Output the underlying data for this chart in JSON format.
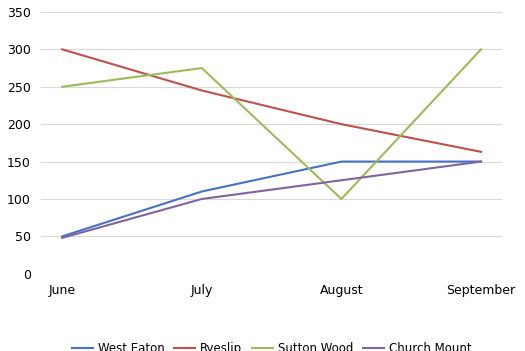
{
  "months": [
    "June",
    "July",
    "August",
    "September"
  ],
  "series": [
    {
      "name": "West Eaton",
      "values": [
        50,
        110,
        150,
        150
      ],
      "color": "#4472C4"
    },
    {
      "name": "Ryeslip",
      "values": [
        300,
        245,
        200,
        163
      ],
      "color": "#C0504D"
    },
    {
      "name": "Sutton Wood",
      "values": [
        250,
        275,
        100,
        300
      ],
      "color": "#9BBB59"
    },
    {
      "name": "Church Mount",
      "values": [
        48,
        100,
        125,
        150
      ],
      "color": "#8064A2"
    }
  ],
  "ylim": [
    0,
    350
  ],
  "yticks": [
    0,
    50,
    100,
    150,
    200,
    250,
    300,
    350
  ],
  "background_color": "#ffffff",
  "grid_color": "#d9d9d9",
  "legend_fontsize": 8.5,
  "tick_fontsize": 9,
  "line_width": 1.5
}
